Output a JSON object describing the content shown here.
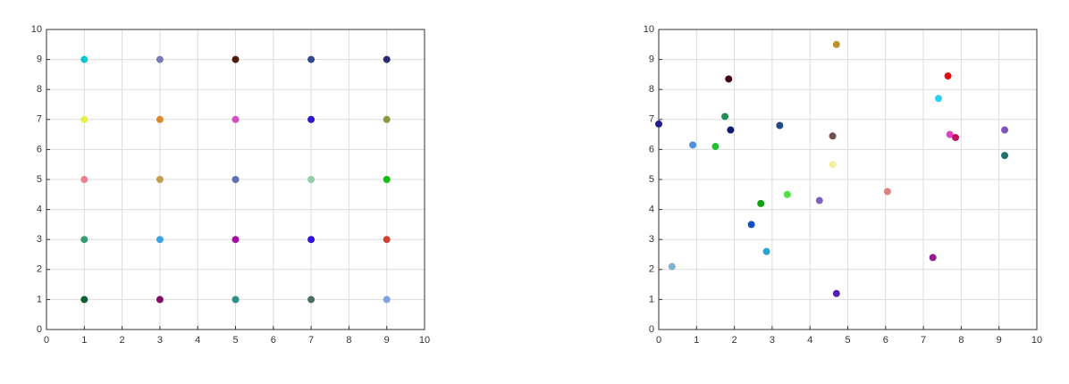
{
  "chart_data": [
    {
      "type": "scatter",
      "grid": true,
      "xlim": [
        0,
        10
      ],
      "ylim": [
        0,
        10
      ],
      "xticks": [
        0,
        1,
        2,
        3,
        4,
        5,
        6,
        7,
        8,
        9,
        10
      ],
      "yticks": [
        0,
        1,
        2,
        3,
        4,
        5,
        6,
        7,
        8,
        9,
        10
      ],
      "x": [
        1,
        3,
        5,
        7,
        9,
        1,
        3,
        5,
        7,
        9,
        1,
        3,
        5,
        7,
        9,
        1,
        3,
        5,
        7,
        9,
        1,
        3,
        5,
        7,
        9
      ],
      "y": [
        9,
        9,
        9,
        9,
        9,
        7,
        7,
        7,
        7,
        7,
        5,
        5,
        5,
        5,
        5,
        3,
        3,
        3,
        3,
        3,
        1,
        1,
        1,
        1,
        1
      ],
      "colors": [
        "#00c8d2",
        "#7b78b8",
        "#4a1a0a",
        "#2e4a8c",
        "#2a2a70",
        "#e8f040",
        "#e08a30",
        "#d050c0",
        "#3018d0",
        "#8a9a40",
        "#f08090",
        "#c0a050",
        "#6070b0",
        "#90d0a8",
        "#10c010",
        "#30a070",
        "#40a0e0",
        "#a010a0",
        "#3010e0",
        "#d04030",
        "#0a6030",
        "#801060",
        "#309080",
        "#4a7060",
        "#80a0e0"
      ]
    },
    {
      "type": "scatter",
      "grid": true,
      "xlim": [
        0,
        10
      ],
      "ylim": [
        0,
        10
      ],
      "xticks": [
        0,
        1,
        2,
        3,
        4,
        5,
        6,
        7,
        8,
        9,
        10
      ],
      "yticks": [
        0,
        1,
        2,
        3,
        4,
        5,
        6,
        7,
        8,
        9,
        10
      ],
      "x": [
        0,
        0.35,
        0.9,
        1.5,
        1.75,
        1.85,
        1.9,
        2.45,
        2.7,
        2.85,
        3.2,
        3.4,
        4.25,
        4.6,
        4.6,
        4.7,
        4.7,
        6.05,
        7.25,
        7.4,
        7.65,
        7.7,
        7.85,
        9.15,
        9.15
      ],
      "y": [
        6.85,
        2.1,
        6.15,
        6.1,
        7.1,
        8.35,
        6.65,
        3.5,
        4.2,
        2.6,
        6.8,
        4.5,
        4.3,
        6.45,
        5.5,
        9.5,
        1.2,
        4.6,
        2.4,
        7.7,
        8.45,
        6.5,
        6.4,
        6.65,
        5.8
      ],
      "colors": [
        "#202090",
        "#80b0d0",
        "#5090e0",
        "#20c030",
        "#209050",
        "#400010",
        "#101870",
        "#1050c0",
        "#10a010",
        "#30a0d0",
        "#204a80",
        "#50e040",
        "#8060c0",
        "#705050",
        "#f0f0a0",
        "#c09030",
        "#5020b0",
        "#e08080",
        "#902090",
        "#30d0f0",
        "#e01010",
        "#e040c0",
        "#c01060",
        "#8050c0",
        "#207070"
      ]
    }
  ]
}
